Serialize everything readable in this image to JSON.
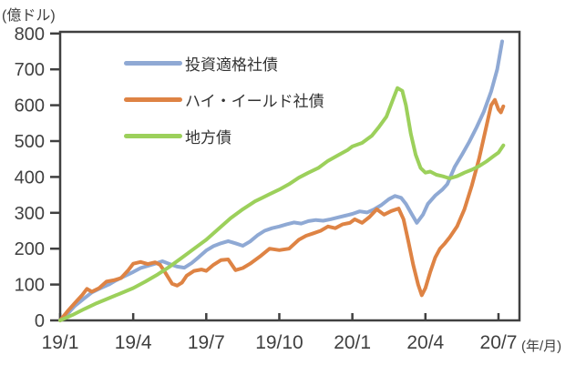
{
  "unit_labels": {
    "y": "(億ドル)",
    "x": "(年/月)"
  },
  "colors": {
    "investment_grade": "#8FA9D4",
    "high_yield": "#DE8344",
    "municipal": "#9CD05B",
    "axis": "#404040",
    "tick_text": "#404040"
  },
  "chart_data": {
    "type": "line",
    "title": "",
    "ylabel": "(億ドル)",
    "xlabel": "(年/月)",
    "ylim": [
      0,
      800
    ],
    "grid": false,
    "legend_position": "inside-top-left",
    "y_ticks": [
      0,
      100,
      200,
      300,
      400,
      500,
      600,
      700,
      800
    ],
    "x_ticks": [
      {
        "t": 0,
        "label": "19/1"
      },
      {
        "t": 3,
        "label": "19/4"
      },
      {
        "t": 6,
        "label": "19/7"
      },
      {
        "t": 9,
        "label": "19/10"
      },
      {
        "t": 12,
        "label": "20/1"
      },
      {
        "t": 15,
        "label": "20/4"
      },
      {
        "t": 18,
        "label": "20/7"
      }
    ],
    "x_unit_note": "t = months since 2019/1",
    "series": [
      {
        "key": "investment-grade",
        "name": "投資適格社債",
        "color": "#8FA9D4",
        "points": [
          [
            0,
            0
          ],
          [
            0.3,
            18
          ],
          [
            0.6,
            40
          ],
          [
            1,
            62
          ],
          [
            1.3,
            78
          ],
          [
            1.6,
            88
          ],
          [
            2,
            100
          ],
          [
            2.3,
            112
          ],
          [
            2.6,
            122
          ],
          [
            3,
            135
          ],
          [
            3.3,
            146
          ],
          [
            3.6,
            152
          ],
          [
            3.9,
            158
          ],
          [
            4.2,
            165
          ],
          [
            4.5,
            157
          ],
          [
            4.8,
            150
          ],
          [
            5.1,
            147
          ],
          [
            5.4,
            160
          ],
          [
            5.7,
            177
          ],
          [
            6,
            195
          ],
          [
            6.3,
            207
          ],
          [
            6.6,
            215
          ],
          [
            6.9,
            221
          ],
          [
            7.2,
            215
          ],
          [
            7.5,
            208
          ],
          [
            7.8,
            220
          ],
          [
            8.1,
            237
          ],
          [
            8.4,
            250
          ],
          [
            8.7,
            257
          ],
          [
            9,
            262
          ],
          [
            9.3,
            268
          ],
          [
            9.6,
            273
          ],
          [
            9.9,
            270
          ],
          [
            10.2,
            277
          ],
          [
            10.5,
            280
          ],
          [
            10.8,
            278
          ],
          [
            11.1,
            282
          ],
          [
            11.4,
            287
          ],
          [
            11.7,
            292
          ],
          [
            12,
            297
          ],
          [
            12.3,
            304
          ],
          [
            12.6,
            301
          ],
          [
            12.9,
            310
          ],
          [
            13.2,
            322
          ],
          [
            13.5,
            338
          ],
          [
            13.75,
            347
          ],
          [
            14,
            342
          ],
          [
            14.2,
            325
          ],
          [
            14.45,
            295
          ],
          [
            14.65,
            272
          ],
          [
            14.9,
            295
          ],
          [
            15.1,
            325
          ],
          [
            15.4,
            348
          ],
          [
            15.7,
            365
          ],
          [
            15.9,
            380
          ],
          [
            16.2,
            428
          ],
          [
            16.5,
            462
          ],
          [
            16.8,
            498
          ],
          [
            17.1,
            538
          ],
          [
            17.4,
            582
          ],
          [
            17.7,
            638
          ],
          [
            17.95,
            700
          ],
          [
            18.15,
            778
          ]
        ]
      },
      {
        "key": "high-yield",
        "name": "ハイ・イールド社債",
        "color": "#DE8344",
        "points": [
          [
            0,
            0
          ],
          [
            0.3,
            25
          ],
          [
            0.6,
            48
          ],
          [
            0.9,
            70
          ],
          [
            1.1,
            88
          ],
          [
            1.3,
            80
          ],
          [
            1.6,
            90
          ],
          [
            1.9,
            108
          ],
          [
            2.2,
            112
          ],
          [
            2.5,
            118
          ],
          [
            2.8,
            140
          ],
          [
            3,
            158
          ],
          [
            3.3,
            163
          ],
          [
            3.6,
            157
          ],
          [
            3.9,
            162
          ],
          [
            4.1,
            155
          ],
          [
            4.3,
            135
          ],
          [
            4.6,
            102
          ],
          [
            4.8,
            97
          ],
          [
            5,
            105
          ],
          [
            5.2,
            125
          ],
          [
            5.5,
            138
          ],
          [
            5.8,
            142
          ],
          [
            6,
            138
          ],
          [
            6.3,
            155
          ],
          [
            6.6,
            168
          ],
          [
            6.9,
            170
          ],
          [
            7.2,
            140
          ],
          [
            7.5,
            146
          ],
          [
            7.8,
            158
          ],
          [
            8.2,
            178
          ],
          [
            8.6,
            200
          ],
          [
            9,
            196
          ],
          [
            9.4,
            200
          ],
          [
            9.8,
            225
          ],
          [
            10.1,
            236
          ],
          [
            10.4,
            243
          ],
          [
            10.7,
            250
          ],
          [
            11,
            262
          ],
          [
            11.3,
            257
          ],
          [
            11.6,
            268
          ],
          [
            11.9,
            272
          ],
          [
            12.1,
            282
          ],
          [
            12.4,
            272
          ],
          [
            12.7,
            288
          ],
          [
            13,
            310
          ],
          [
            13.3,
            295
          ],
          [
            13.6,
            305
          ],
          [
            13.9,
            312
          ],
          [
            14.1,
            282
          ],
          [
            14.3,
            220
          ],
          [
            14.5,
            155
          ],
          [
            14.7,
            100
          ],
          [
            14.85,
            70
          ],
          [
            15,
            90
          ],
          [
            15.2,
            135
          ],
          [
            15.4,
            175
          ],
          [
            15.6,
            200
          ],
          [
            15.8,
            215
          ],
          [
            16,
            232
          ],
          [
            16.3,
            262
          ],
          [
            16.6,
            310
          ],
          [
            16.9,
            375
          ],
          [
            17.2,
            450
          ],
          [
            17.5,
            540
          ],
          [
            17.7,
            600
          ],
          [
            17.85,
            615
          ],
          [
            18,
            588
          ],
          [
            18.1,
            580
          ],
          [
            18.2,
            597
          ]
        ]
      },
      {
        "key": "municipal",
        "name": "地方債",
        "color": "#9CD05B",
        "points": [
          [
            0,
            0
          ],
          [
            0.5,
            15
          ],
          [
            1,
            32
          ],
          [
            1.5,
            48
          ],
          [
            2,
            62
          ],
          [
            2.5,
            76
          ],
          [
            3,
            90
          ],
          [
            3.5,
            108
          ],
          [
            4,
            128
          ],
          [
            4.5,
            150
          ],
          [
            5,
            175
          ],
          [
            5.5,
            200
          ],
          [
            6,
            225
          ],
          [
            6.5,
            255
          ],
          [
            7,
            285
          ],
          [
            7.5,
            310
          ],
          [
            8,
            332
          ],
          [
            8.3,
            342
          ],
          [
            8.6,
            352
          ],
          [
            9,
            365
          ],
          [
            9.4,
            380
          ],
          [
            9.8,
            398
          ],
          [
            10.2,
            412
          ],
          [
            10.6,
            425
          ],
          [
            11,
            445
          ],
          [
            11.4,
            460
          ],
          [
            11.8,
            475
          ],
          [
            12,
            485
          ],
          [
            12.4,
            495
          ],
          [
            12.8,
            515
          ],
          [
            13.1,
            540
          ],
          [
            13.4,
            568
          ],
          [
            13.7,
            622
          ],
          [
            13.85,
            648
          ],
          [
            14.05,
            640
          ],
          [
            14.2,
            600
          ],
          [
            14.4,
            520
          ],
          [
            14.6,
            462
          ],
          [
            14.8,
            425
          ],
          [
            15,
            412
          ],
          [
            15.2,
            415
          ],
          [
            15.45,
            406
          ],
          [
            15.7,
            402
          ],
          [
            16,
            396
          ],
          [
            16.3,
            402
          ],
          [
            16.6,
            412
          ],
          [
            16.9,
            420
          ],
          [
            17.2,
            430
          ],
          [
            17.5,
            443
          ],
          [
            17.8,
            458
          ],
          [
            18,
            468
          ],
          [
            18.2,
            488
          ]
        ]
      }
    ]
  }
}
